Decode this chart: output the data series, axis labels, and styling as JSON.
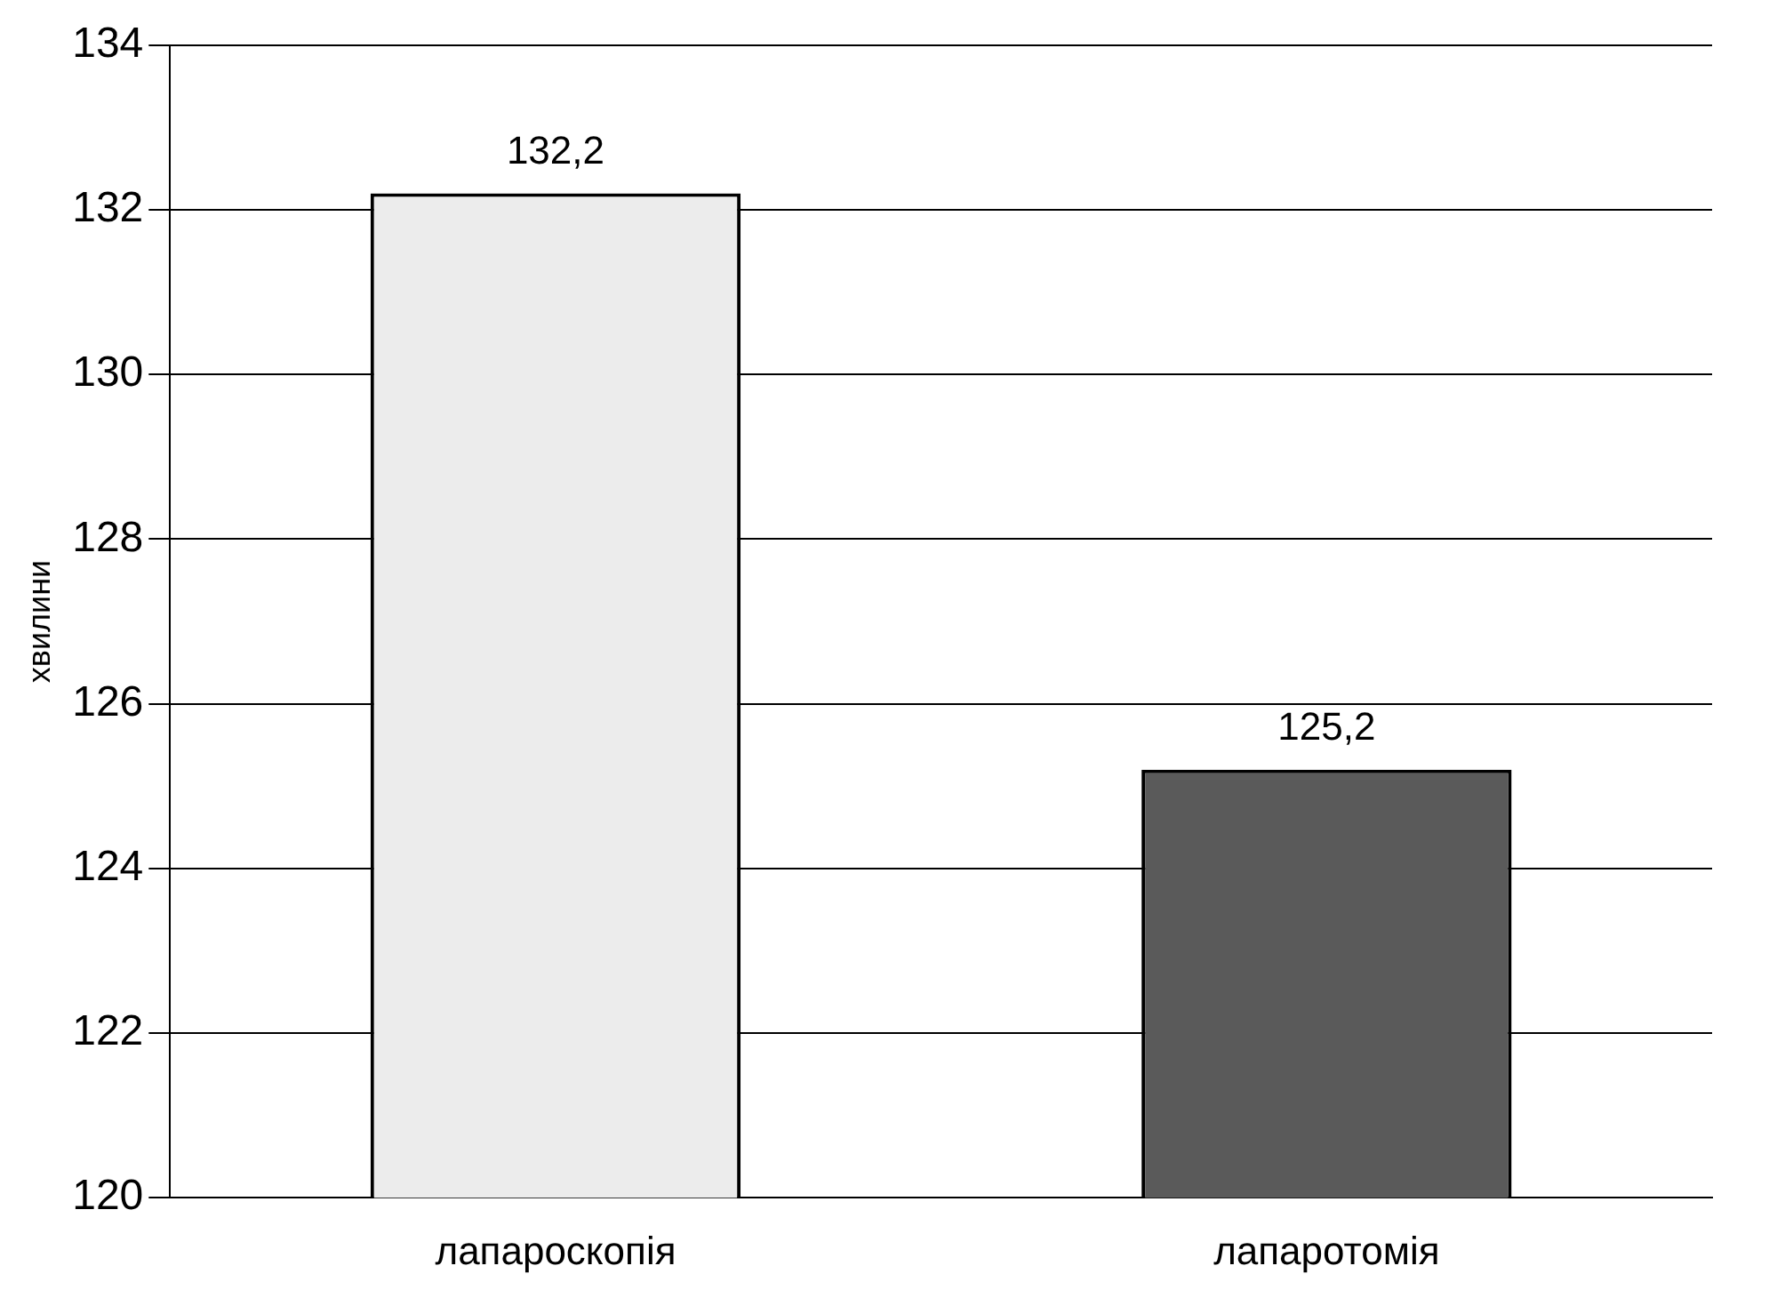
{
  "chart_data": {
    "type": "bar",
    "ylabel": "хвилини",
    "categories": [
      "лапароскопія",
      "лапаротомія"
    ],
    "values": [
      132.2,
      125.2
    ],
    "colors": [
      "#ececec",
      "#5a5a5a"
    ],
    "value_labels": [
      "132,2",
      "125,2"
    ],
    "ylim": [
      120,
      134
    ],
    "yticks": [
      120,
      122,
      124,
      126,
      128,
      130,
      132,
      134
    ],
    "grid": "y",
    "legend": false
  }
}
